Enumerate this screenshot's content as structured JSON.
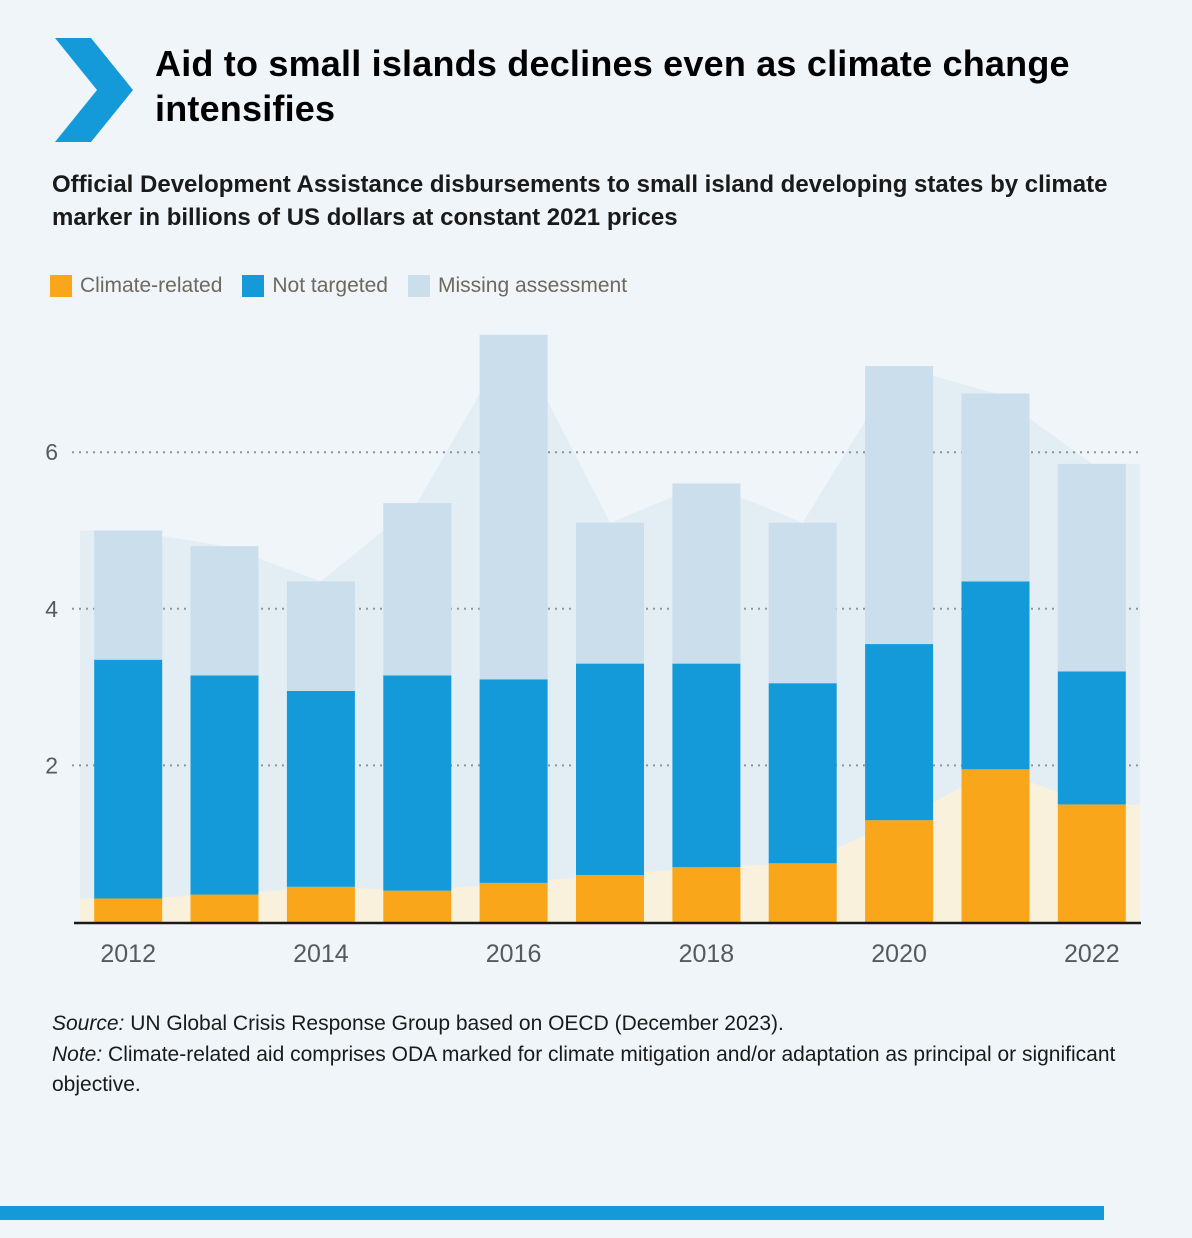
{
  "header": {
    "title": "Aid to small islands declines even as climate change intensifies",
    "subtitle": "Official Development Assistance disbursements to small island developing states by climate marker in billions of US dollars at constant 2021 prices"
  },
  "colors": {
    "accent_blue": "#149AD8",
    "page_background": "#EFF5F9"
  },
  "legend": [
    {
      "label": "Climate-related",
      "color": "#F9A61A"
    },
    {
      "label": "Not targeted",
      "color": "#149AD8"
    },
    {
      "label": "Missing assessment",
      "color": "#CADEEC"
    }
  ],
  "chart_data": {
    "type": "bar",
    "stacked": true,
    "title": "Aid to small islands declines even as climate change intensifies",
    "subtitle": "Official Development Assistance disbursements to small island developing states by climate marker in billions of US dollars at constant 2021 prices",
    "categories": [
      "2012",
      "2013",
      "2014",
      "2015",
      "2016",
      "2017",
      "2018",
      "2019",
      "2020",
      "2021",
      "2022"
    ],
    "series": [
      {
        "name": "Climate-related",
        "color": "#F9A61A",
        "values": [
          0.3,
          0.35,
          0.45,
          0.4,
          0.5,
          0.6,
          0.7,
          0.75,
          1.3,
          1.95,
          1.5
        ]
      },
      {
        "name": "Not targeted",
        "color": "#149AD8",
        "values": [
          3.05,
          2.8,
          2.5,
          2.75,
          2.6,
          2.7,
          2.6,
          2.3,
          2.25,
          2.4,
          1.7
        ]
      },
      {
        "name": "Missing assessment",
        "color": "#CADEEC",
        "values": [
          1.65,
          1.65,
          1.4,
          2.2,
          4.4,
          1.8,
          2.3,
          2.05,
          3.55,
          2.4,
          2.65
        ]
      }
    ],
    "totals": [
      5.0,
      4.8,
      4.35,
      5.35,
      7.5,
      5.1,
      5.6,
      5.1,
      7.1,
      6.75,
      5.85
    ],
    "xlabel": "",
    "ylabel": "",
    "yticks": [
      2,
      4,
      6
    ],
    "ylim": [
      0,
      7.6
    ],
    "xtick_labels": [
      "2012",
      "2014",
      "2016",
      "2018",
      "2020",
      "2022"
    ],
    "grid": "horizontal dotted",
    "legend_position": "top-left",
    "background_areas": {
      "total_fill": "#E3EDF4",
      "climate_fill": "#FAF1DD"
    }
  },
  "footer": {
    "source_label": "Source:",
    "source_text": " UN Global Crisis Response Group based on OECD (December 2023).",
    "note_label": "Note:",
    "note_text": " Climate-related aid comprises ODA marked for climate mitigation and/or adaptation as principal or significant objective."
  }
}
